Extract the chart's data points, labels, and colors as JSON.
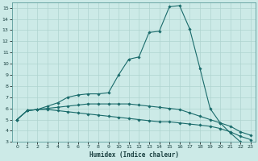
{
  "xlabel": "Humidex (Indice chaleur)",
  "xlim": [
    -0.5,
    23.5
  ],
  "ylim": [
    3,
    15.5
  ],
  "xticks": [
    0,
    1,
    2,
    3,
    4,
    5,
    6,
    7,
    8,
    9,
    10,
    11,
    12,
    13,
    14,
    15,
    16,
    17,
    18,
    19,
    20,
    21,
    22,
    23
  ],
  "yticks": [
    3,
    4,
    5,
    6,
    7,
    8,
    9,
    10,
    11,
    12,
    13,
    14,
    15
  ],
  "bg_color": "#cceae7",
  "grid_color": "#aed4d0",
  "line_color": "#1a6b6b",
  "series": [
    [
      5.0,
      5.8,
      5.9,
      6.2,
      6.5,
      7.0,
      7.2,
      7.3,
      7.3,
      7.4,
      9.0,
      10.4,
      10.6,
      12.8,
      12.9,
      15.1,
      15.2,
      13.1,
      9.6,
      6.0,
      4.7,
      3.8,
      3.0,
      2.8
    ],
    [
      5.0,
      5.8,
      5.9,
      6.0,
      6.1,
      6.2,
      6.3,
      6.4,
      6.4,
      6.4,
      6.4,
      6.4,
      6.3,
      6.2,
      6.1,
      6.0,
      5.9,
      5.6,
      5.3,
      5.0,
      4.7,
      4.4,
      3.9,
      3.6
    ],
    [
      5.0,
      5.8,
      5.9,
      5.9,
      5.8,
      5.7,
      5.6,
      5.5,
      5.4,
      5.3,
      5.2,
      5.1,
      5.0,
      4.9,
      4.8,
      4.8,
      4.7,
      4.6,
      4.5,
      4.4,
      4.2,
      3.9,
      3.5,
      3.2
    ]
  ]
}
